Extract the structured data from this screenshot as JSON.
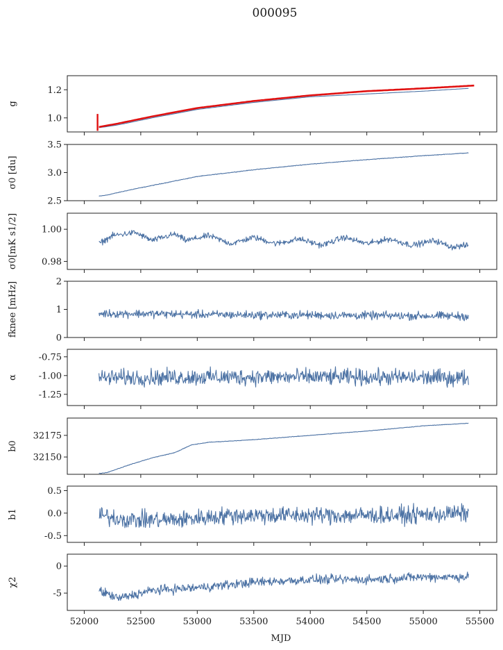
{
  "figure": {
    "title": "000095",
    "xlabel": "MJD"
  },
  "colors": {
    "series": "#4c72a4",
    "fit": "#e01010"
  },
  "chart_data": [
    {
      "id": "g",
      "type": "line",
      "ylabel": "g",
      "ylim": [
        0.9,
        1.3
      ],
      "yticks": [
        "1.0",
        "1.2"
      ],
      "ytick_values": [
        1.0,
        1.2
      ],
      "xlim": [
        51850,
        55650
      ],
      "series": [
        {
          "color": "#4c72a4",
          "x": [
            52130,
            52300,
            52600,
            53000,
            53500,
            54000,
            54500,
            55000,
            55400
          ],
          "y": [
            0.93,
            0.95,
            1.0,
            1.06,
            1.11,
            1.15,
            1.17,
            1.19,
            1.21
          ]
        },
        {
          "color": "#e01010",
          "x": [
            52130,
            52300,
            52600,
            53000,
            53500,
            54000,
            54500,
            55000,
            55450
          ],
          "y": [
            0.935,
            0.96,
            1.01,
            1.07,
            1.12,
            1.16,
            1.19,
            1.21,
            1.23
          ]
        }
      ],
      "noise": 0.0
    },
    {
      "id": "sigma0_du",
      "type": "line",
      "ylabel": "σ0 [du]",
      "ylim": [
        2.5,
        3.5
      ],
      "yticks": [
        "2.5",
        "3.0",
        "3.5"
      ],
      "ytick_values": [
        2.5,
        3.0,
        3.5
      ],
      "xlim": [
        51850,
        55650
      ],
      "series": [
        {
          "color": "#4c72a4",
          "x": [
            52130,
            52200,
            52400,
            52700,
            53000,
            53500,
            54000,
            54500,
            55000,
            55400
          ],
          "y": [
            2.58,
            2.6,
            2.69,
            2.81,
            2.93,
            3.05,
            3.15,
            3.23,
            3.3,
            3.35
          ]
        }
      ],
      "noise": 0.004
    },
    {
      "id": "sigma0_mk",
      "type": "line",
      "ylabel": "σ0[mK s1/2]",
      "ylim": [
        0.975,
        1.01
      ],
      "yticks": [
        "0.98",
        "1.00"
      ],
      "ytick_values": [
        0.98,
        1.0
      ],
      "xlim": [
        51850,
        55650
      ],
      "series": [
        {
          "color": "#4c72a4",
          "x": [
            52130,
            52250,
            52450,
            52600,
            52800,
            52900,
            53100,
            53300,
            53500,
            53700,
            53900,
            54100,
            54300,
            54500,
            54700,
            54900,
            55100,
            55250,
            55400
          ],
          "y": [
            0.991,
            0.996,
            0.998,
            0.993,
            0.997,
            0.993,
            0.996,
            0.991,
            0.995,
            0.991,
            0.994,
            0.99,
            0.995,
            0.991,
            0.994,
            0.99,
            0.993,
            0.989,
            0.99
          ]
        }
      ],
      "noise": 0.0015
    },
    {
      "id": "fknee",
      "type": "line",
      "ylabel": "fknee [mHz]",
      "ylim": [
        0,
        2
      ],
      "yticks": [
        "0",
        "1",
        "2"
      ],
      "ytick_values": [
        0,
        1,
        2
      ],
      "xlim": [
        51850,
        55650
      ],
      "series": [
        {
          "color": "#4c72a4",
          "x": [
            52130,
            52500,
            53000,
            53500,
            54000,
            54500,
            55000,
            55400
          ],
          "y": [
            0.85,
            0.85,
            0.82,
            0.8,
            0.8,
            0.78,
            0.77,
            0.76
          ]
        }
      ],
      "noise": 0.12
    },
    {
      "id": "alpha",
      "type": "line",
      "ylabel": "α",
      "ylim": [
        -1.4,
        -0.65
      ],
      "yticks": [
        "-1.25",
        "-1.00",
        "-0.75"
      ],
      "ytick_values": [
        -1.25,
        -1.0,
        -0.75
      ],
      "xlim": [
        51850,
        55650
      ],
      "series": [
        {
          "color": "#4c72a4",
          "x": [
            52130,
            53000,
            54000,
            55400
          ],
          "y": [
            -1.03,
            -1.02,
            -1.02,
            -1.03
          ]
        }
      ],
      "noise": 0.09
    },
    {
      "id": "b0",
      "type": "line",
      "ylabel": "b0",
      "ylim": [
        32130,
        32195
      ],
      "yticks": [
        "32150",
        "32175"
      ],
      "ytick_values": [
        32150,
        32175
      ],
      "xlim": [
        51850,
        55650
      ],
      "series": [
        {
          "color": "#4c72a4",
          "x": [
            52130,
            52200,
            52400,
            52600,
            52800,
            52950,
            53100,
            53500,
            54000,
            54500,
            55000,
            55400
          ],
          "y": [
            32131,
            32132,
            32141,
            32149,
            32155,
            32164,
            32167,
            32170,
            32175,
            32180,
            32186,
            32189
          ]
        }
      ],
      "noise": 0.25
    },
    {
      "id": "b1",
      "type": "line",
      "ylabel": "b1",
      "ylim": [
        -0.65,
        0.6
      ],
      "yticks": [
        "-0.5",
        "0.0",
        "0.5"
      ],
      "ytick_values": [
        -0.5,
        0.0,
        0.5
      ],
      "xlim": [
        51850,
        55650
      ],
      "series": [
        {
          "color": "#4c72a4",
          "x": [
            52130,
            52400,
            52800,
            53300,
            54000,
            54800,
            55400
          ],
          "y": [
            -0.05,
            -0.15,
            -0.15,
            -0.05,
            -0.05,
            -0.05,
            0.0
          ]
        }
      ],
      "noise": 0.16
    },
    {
      "id": "chi2",
      "type": "line",
      "ylabel": "χ2",
      "ylim": [
        -8.2,
        2.2
      ],
      "yticks": [
        "-5",
        "0"
      ],
      "ytick_values": [
        -5,
        0
      ],
      "xlim": [
        51850,
        55650
      ],
      "xticks": [
        "52000",
        "52500",
        "53000",
        "53500",
        "54000",
        "54500",
        "55000",
        "55500"
      ],
      "xtick_values": [
        52000,
        52500,
        53000,
        53500,
        54000,
        54500,
        55000,
        55500
      ],
      "series": [
        {
          "color": "#4c72a4",
          "x": [
            52130,
            52300,
            52600,
            53000,
            53500,
            54000,
            54500,
            55000,
            55400
          ],
          "y": [
            -4.5,
            -6.0,
            -4.5,
            -4.0,
            -3.0,
            -2.5,
            -2.5,
            -2.0,
            -2.0
          ]
        }
      ],
      "noise": 0.7
    }
  ]
}
